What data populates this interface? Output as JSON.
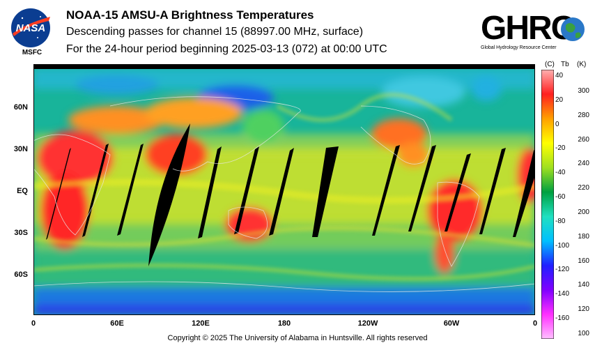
{
  "header": {
    "title": "NOAA-15 AMSU-A Brightness Temperatures",
    "subtitle1": "Descending passes for channel 15 (88997.00 MHz, surface)",
    "subtitle2": "For the 24-hour period beginning 2025-03-13 (072) at 00:00 UTC"
  },
  "logos": {
    "nasa_text": "NASA",
    "msfc_text": "MSFC",
    "ghrc_text": "GHRC",
    "ghrc_caption": "Global Hydrology Resource Center"
  },
  "map": {
    "lat_labels": [
      "60N",
      "30N",
      "EQ",
      "30S",
      "60S"
    ],
    "lon_labels": [
      "0",
      "60E",
      "120E",
      "180",
      "120W",
      "60W",
      "0"
    ]
  },
  "colorbar": {
    "header_c": "(C)",
    "header_tb": "Tb",
    "header_k": "(K)",
    "celsius_labels": [
      "40",
      "20",
      "0",
      "-20",
      "-40",
      "-60",
      "-80",
      "-100",
      "-120",
      "-140",
      "-160"
    ],
    "kelvin_labels": [
      "300",
      "280",
      "260",
      "240",
      "220",
      "200",
      "180",
      "160",
      "140",
      "120",
      "100"
    ],
    "colors": [
      "#ffc0ff",
      "#ff30ff",
      "#8000ff",
      "#2020ff",
      "#00c0ff",
      "#20e0c0",
      "#00a040",
      "#a0e020",
      "#ffff00",
      "#ffa000",
      "#ff2020",
      "#ffb0b0"
    ]
  },
  "footer": {
    "copyright": "Copyright © 2025 The University of Alabama in Huntsville.  All rights reserved"
  }
}
